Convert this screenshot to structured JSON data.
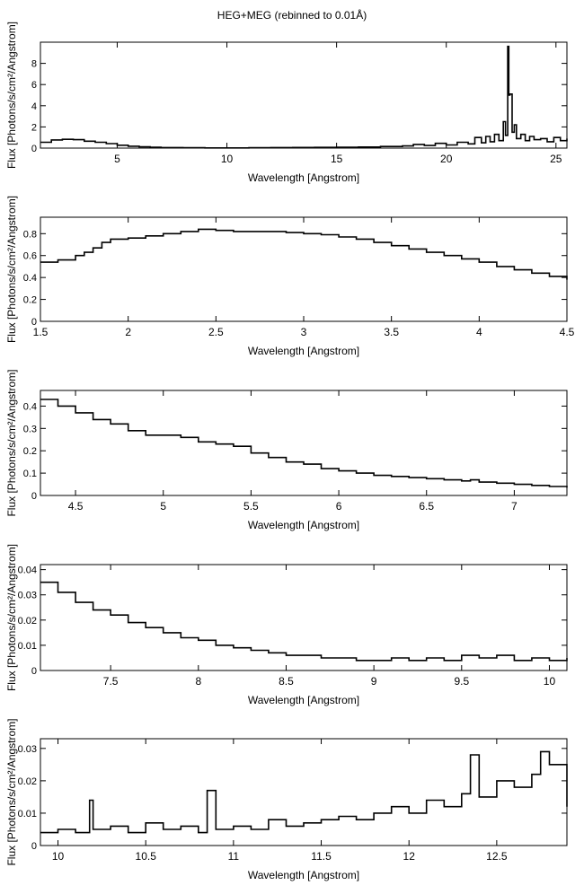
{
  "figure": {
    "title": "HEG+MEG (rebinned to 0.01Å)"
  },
  "chart_data": [
    {
      "type": "line",
      "title": "HEG+MEG (rebinned to 0.01Å)",
      "xlabel": "Wavelength [Angstrom]",
      "ylabel": "Flux [Photons/s/cm²/Angstrom]",
      "xlim": [
        1.5,
        25.5
      ],
      "ylim": [
        0,
        10
      ],
      "xticks": [
        5,
        10,
        15,
        20,
        25
      ],
      "yticks": [
        0,
        2,
        4,
        6,
        8
      ],
      "xtick_labels": [
        "5",
        "10",
        "15",
        "20",
        "25"
      ],
      "ytick_labels": [
        "0",
        "2",
        "4",
        "6",
        "8"
      ],
      "grid": false,
      "series": [
        {
          "style": "step",
          "x": [
            1.5,
            2.0,
            2.5,
            3.0,
            3.5,
            4.0,
            4.5,
            5.0,
            5.5,
            6.0,
            6.5,
            7.0,
            8.0,
            9.0,
            10.0,
            11.0,
            12.0,
            13.0,
            14.0,
            15.0,
            16.0,
            17.0,
            18.0,
            18.5,
            19.0,
            19.5,
            20.0,
            20.5,
            21.0,
            21.3,
            21.6,
            21.8,
            22.0,
            22.2,
            22.4,
            22.6,
            22.7,
            22.8,
            22.85,
            22.9,
            23.0,
            23.1,
            23.2,
            23.4,
            23.6,
            23.8,
            24.0,
            24.3,
            24.6,
            24.9,
            25.2,
            25.5
          ],
          "y": [
            0.55,
            0.77,
            0.83,
            0.8,
            0.65,
            0.55,
            0.42,
            0.27,
            0.18,
            0.12,
            0.08,
            0.05,
            0.03,
            0.02,
            0.02,
            0.03,
            0.05,
            0.06,
            0.07,
            0.08,
            0.1,
            0.15,
            0.2,
            0.35,
            0.25,
            0.45,
            0.3,
            0.55,
            0.4,
            1.0,
            0.5,
            1.1,
            0.6,
            1.3,
            0.7,
            2.5,
            1.2,
            9.6,
            5.0,
            5.1,
            1.5,
            2.2,
            0.9,
            1.3,
            0.7,
            1.1,
            0.8,
            0.9,
            0.6,
            1.0,
            0.7,
            0.9
          ]
        }
      ]
    },
    {
      "type": "line",
      "xlabel": "Wavelength [Angstrom]",
      "ylabel": "Flux [Photons/s/cm²/Angstrom]",
      "xlim": [
        1.5,
        4.5
      ],
      "ylim": [
        0,
        0.95
      ],
      "xticks": [
        1.5,
        2,
        2.5,
        3,
        3.5,
        4,
        4.5
      ],
      "yticks": [
        0,
        0.2,
        0.4,
        0.6,
        0.8
      ],
      "xtick_labels": [
        "1.5",
        "2",
        "2.5",
        "3",
        "3.5",
        "4",
        "4.5"
      ],
      "ytick_labels": [
        "0",
        "0.2",
        "0.4",
        "0.6",
        "0.8"
      ],
      "grid": false,
      "series": [
        {
          "style": "step",
          "x": [
            1.5,
            1.6,
            1.7,
            1.75,
            1.8,
            1.85,
            1.9,
            2.0,
            2.1,
            2.2,
            2.3,
            2.4,
            2.5,
            2.6,
            2.7,
            2.8,
            2.9,
            3.0,
            3.1,
            3.2,
            3.3,
            3.4,
            3.5,
            3.6,
            3.7,
            3.8,
            3.9,
            4.0,
            4.1,
            4.2,
            4.3,
            4.4,
            4.5
          ],
          "y": [
            0.54,
            0.56,
            0.6,
            0.63,
            0.67,
            0.72,
            0.75,
            0.76,
            0.78,
            0.8,
            0.82,
            0.84,
            0.83,
            0.82,
            0.82,
            0.82,
            0.81,
            0.8,
            0.79,
            0.77,
            0.75,
            0.72,
            0.69,
            0.66,
            0.63,
            0.6,
            0.57,
            0.54,
            0.5,
            0.47,
            0.44,
            0.41,
            0.38
          ]
        }
      ]
    },
    {
      "type": "line",
      "xlabel": "Wavelength [Angstrom]",
      "ylabel": "Flux [Photons/s/cm²/Angstrom]",
      "xlim": [
        4.3,
        7.3
      ],
      "ylim": [
        0,
        0.47
      ],
      "xticks": [
        4.5,
        5,
        5.5,
        6,
        6.5,
        7
      ],
      "yticks": [
        0,
        0.1,
        0.2,
        0.3,
        0.4
      ],
      "xtick_labels": [
        "4.5",
        "5",
        "5.5",
        "6",
        "6.5",
        "7"
      ],
      "ytick_labels": [
        "0",
        "0.1",
        "0.2",
        "0.3",
        "0.4"
      ],
      "grid": false,
      "series": [
        {
          "style": "step",
          "x": [
            4.3,
            4.4,
            4.5,
            4.6,
            4.7,
            4.8,
            4.9,
            5.0,
            5.1,
            5.2,
            5.3,
            5.4,
            5.5,
            5.6,
            5.7,
            5.8,
            5.9,
            6.0,
            6.1,
            6.2,
            6.3,
            6.4,
            6.5,
            6.6,
            6.7,
            6.75,
            6.8,
            6.9,
            7.0,
            7.1,
            7.2,
            7.3
          ],
          "y": [
            0.43,
            0.4,
            0.37,
            0.34,
            0.32,
            0.29,
            0.27,
            0.27,
            0.26,
            0.24,
            0.23,
            0.22,
            0.19,
            0.17,
            0.15,
            0.14,
            0.12,
            0.11,
            0.1,
            0.09,
            0.085,
            0.08,
            0.075,
            0.07,
            0.065,
            0.07,
            0.06,
            0.055,
            0.05,
            0.045,
            0.04,
            0.035
          ]
        }
      ]
    },
    {
      "type": "line",
      "xlabel": "Wavelength [Angstrom]",
      "ylabel": "Flux [Photons/s/cm²/Angstrom]",
      "xlim": [
        7.1,
        10.1
      ],
      "ylim": [
        0,
        0.042
      ],
      "xticks": [
        7.5,
        8,
        8.5,
        9,
        9.5,
        10
      ],
      "yticks": [
        0,
        0.01,
        0.02,
        0.03,
        0.04
      ],
      "xtick_labels": [
        "7.5",
        "8",
        "8.5",
        "9",
        "9.5",
        "10"
      ],
      "ytick_labels": [
        "0",
        "0.01",
        "0.02",
        "0.03",
        "0.04"
      ],
      "grid": false,
      "series": [
        {
          "style": "step",
          "x": [
            7.1,
            7.2,
            7.3,
            7.4,
            7.5,
            7.6,
            7.7,
            7.8,
            7.9,
            8.0,
            8.1,
            8.2,
            8.3,
            8.4,
            8.5,
            8.6,
            8.7,
            8.8,
            8.9,
            9.0,
            9.1,
            9.2,
            9.3,
            9.4,
            9.5,
            9.6,
            9.7,
            9.8,
            9.9,
            10.0,
            10.1
          ],
          "y": [
            0.035,
            0.031,
            0.027,
            0.024,
            0.022,
            0.019,
            0.017,
            0.015,
            0.013,
            0.012,
            0.01,
            0.009,
            0.008,
            0.007,
            0.006,
            0.006,
            0.005,
            0.005,
            0.004,
            0.004,
            0.005,
            0.004,
            0.005,
            0.004,
            0.006,
            0.005,
            0.006,
            0.004,
            0.005,
            0.004,
            0.005
          ]
        }
      ]
    },
    {
      "type": "line",
      "xlabel": "Wavelength [Angstrom]",
      "ylabel": "Flux [Photons/s/cm²/Angstrom]",
      "xlim": [
        9.9,
        12.9
      ],
      "ylim": [
        0,
        0.033
      ],
      "xticks": [
        10,
        10.5,
        11,
        11.5,
        12,
        12.5
      ],
      "yticks": [
        0,
        0.01,
        0.02,
        0.03
      ],
      "xtick_labels": [
        "10",
        "10.5",
        "11",
        "11.5",
        "12",
        "12.5"
      ],
      "ytick_labels": [
        "0",
        "0.01",
        "0.02",
        "0.03"
      ],
      "grid": false,
      "series": [
        {
          "style": "step",
          "x": [
            9.9,
            10.0,
            10.1,
            10.18,
            10.2,
            10.3,
            10.4,
            10.5,
            10.6,
            10.7,
            10.8,
            10.85,
            10.9,
            11.0,
            11.1,
            11.2,
            11.3,
            11.4,
            11.5,
            11.6,
            11.7,
            11.8,
            11.9,
            12.0,
            12.1,
            12.2,
            12.3,
            12.35,
            12.4,
            12.5,
            12.6,
            12.7,
            12.75,
            12.8,
            12.9
          ],
          "y": [
            0.004,
            0.005,
            0.004,
            0.014,
            0.005,
            0.006,
            0.004,
            0.007,
            0.005,
            0.006,
            0.004,
            0.017,
            0.005,
            0.006,
            0.005,
            0.008,
            0.006,
            0.007,
            0.008,
            0.009,
            0.008,
            0.01,
            0.012,
            0.01,
            0.014,
            0.012,
            0.016,
            0.028,
            0.015,
            0.02,
            0.018,
            0.022,
            0.029,
            0.025,
            0.012
          ]
        }
      ]
    }
  ]
}
